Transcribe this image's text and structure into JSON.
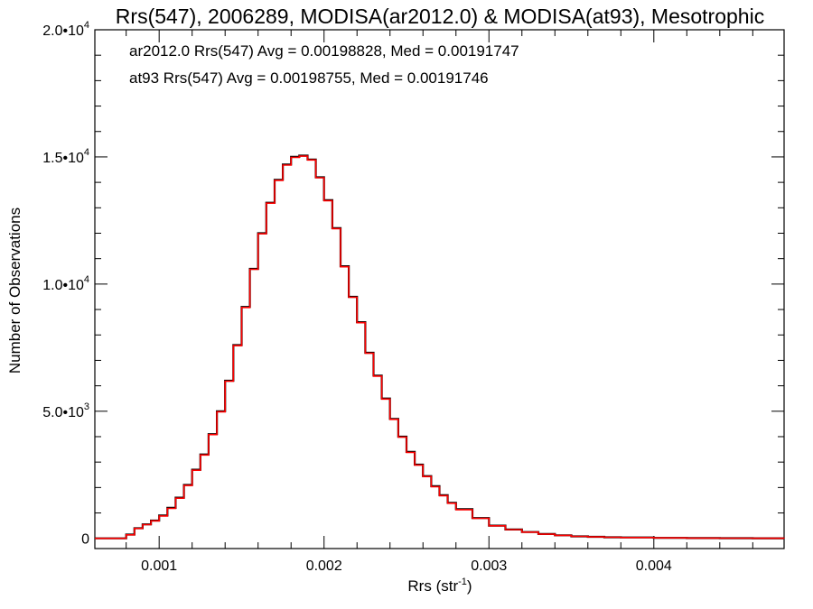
{
  "chart_data": {
    "type": "line",
    "title": "Rrs(547), 2006289, MODISA(ar2012.0) & MODISA(at93), Mesotrophic",
    "xlabel": "Rrs (str",
    "xlabel_sup": "-1",
    "xlabel_close": ")",
    "ylabel": "Number of Observations",
    "xlim": [
      0.00061,
      0.00479
    ],
    "ylim": [
      -400,
      20000
    ],
    "x_ticks": [
      0.001,
      0.002,
      0.003,
      0.004
    ],
    "x_tick_labels": [
      "0.001",
      "0.002",
      "0.003",
      "0.004"
    ],
    "y_ticks": [
      0,
      5000,
      10000,
      15000,
      20000
    ],
    "y_tick_labels": [
      {
        "mant": "0",
        "exp": ""
      },
      {
        "mant": "5.0•10",
        "exp": "3"
      },
      {
        "mant": "1.0•10",
        "exp": "4"
      },
      {
        "mant": "1.5•10",
        "exp": "4"
      },
      {
        "mant": "2.0•10",
        "exp": "4"
      }
    ],
    "grid": false,
    "annotations": [
      {
        "text": "ar2012.0 Rrs(547) Avg = 0.00198828, Med = 0.00191747",
        "color": "#000000"
      },
      {
        "text": "at93 Rrs(547) Avg = 0.00198755, Med = 0.00191746",
        "color": "#ff0000"
      }
    ],
    "series": [
      {
        "color": "#000000",
        "x": [
          0.0006,
          0.0007,
          0.00075,
          0.0008,
          0.00085,
          0.0009,
          0.00095,
          0.001,
          0.00105,
          0.0011,
          0.00115,
          0.0012,
          0.00125,
          0.0013,
          0.00135,
          0.0014,
          0.00145,
          0.0015,
          0.00155,
          0.0016,
          0.00165,
          0.0017,
          0.00175,
          0.0018,
          0.00185,
          0.0019,
          0.00195,
          0.002,
          0.00205,
          0.0021,
          0.00215,
          0.0022,
          0.00225,
          0.0023,
          0.00235,
          0.0024,
          0.00245,
          0.0025,
          0.00255,
          0.0026,
          0.00265,
          0.0027,
          0.00275,
          0.0028,
          0.0029,
          0.003,
          0.0031,
          0.0032,
          0.0033,
          0.0034,
          0.0035,
          0.0036,
          0.0037,
          0.0038,
          0.004,
          0.0042,
          0.0044,
          0.0046,
          0.0048
        ],
        "y": [
          0,
          0,
          0,
          150,
          400,
          550,
          700,
          900,
          1200,
          1600,
          2100,
          2700,
          3300,
          4100,
          5000,
          6200,
          7600,
          9100,
          10600,
          12000,
          13200,
          14100,
          14700,
          15000,
          15050,
          14900,
          14200,
          13300,
          12200,
          10700,
          9500,
          8500,
          7300,
          6400,
          5500,
          4700,
          4000,
          3400,
          2900,
          2450,
          2050,
          1700,
          1400,
          1150,
          800,
          500,
          350,
          250,
          170,
          120,
          80,
          60,
          45,
          35,
          20,
          12,
          8,
          5,
          3
        ]
      },
      {
        "color": "#ff0000",
        "x": [
          0.0006,
          0.0007,
          0.00075,
          0.0008,
          0.00085,
          0.0009,
          0.00095,
          0.001,
          0.00105,
          0.0011,
          0.00115,
          0.0012,
          0.00125,
          0.0013,
          0.00135,
          0.0014,
          0.00145,
          0.0015,
          0.00155,
          0.0016,
          0.00165,
          0.0017,
          0.00175,
          0.0018,
          0.00185,
          0.0019,
          0.00195,
          0.002,
          0.00205,
          0.0021,
          0.00215,
          0.0022,
          0.00225,
          0.0023,
          0.00235,
          0.0024,
          0.00245,
          0.0025,
          0.00255,
          0.0026,
          0.00265,
          0.0027,
          0.00275,
          0.0028,
          0.0029,
          0.003,
          0.0031,
          0.0032,
          0.0033,
          0.0034,
          0.0035,
          0.0036,
          0.0037,
          0.0038,
          0.004,
          0.0042,
          0.0044,
          0.0046,
          0.0048
        ],
        "y": [
          0,
          0,
          0,
          140,
          390,
          540,
          690,
          880,
          1180,
          1580,
          2080,
          2680,
          3280,
          4080,
          4980,
          6180,
          7580,
          9080,
          10580,
          11980,
          13180,
          14080,
          14680,
          14980,
          15030,
          14880,
          14180,
          13280,
          12180,
          10680,
          9480,
          8480,
          7280,
          6380,
          5480,
          4680,
          3980,
          3380,
          2880,
          2430,
          2030,
          1680,
          1380,
          1130,
          790,
          495,
          345,
          245,
          165,
          118,
          78,
          58,
          44,
          34,
          19,
          11,
          7,
          4,
          2
        ]
      }
    ]
  }
}
